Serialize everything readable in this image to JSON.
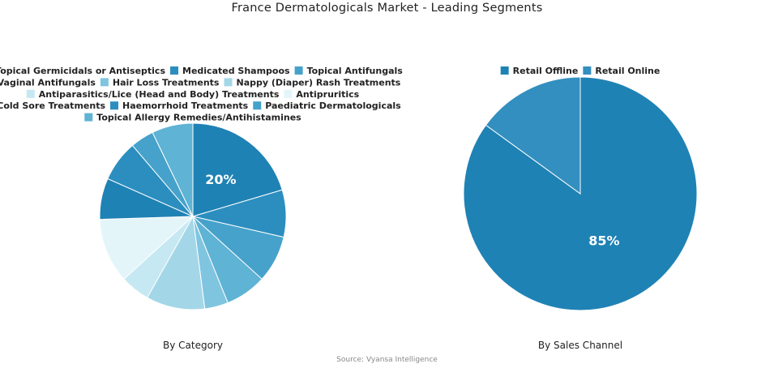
{
  "title": "France Dermatologicals Market - Leading Segments",
  "source": "Source: Vyansa Intelligence",
  "chart_data": [
    {
      "type": "pie",
      "title": "By Category",
      "legend_position": "top",
      "slices": [
        {
          "label": "Topical Germicidals or Antiseptics",
          "value": 20,
          "color": "#1f82b4",
          "data_label": "20%"
        },
        {
          "label": "Medicated Shampoos",
          "value": 8,
          "color": "#2b8ebf",
          "data_label": ""
        },
        {
          "label": "Topical Antifungals",
          "value": 8,
          "color": "#46a2cb",
          "data_label": ""
        },
        {
          "label": "Vaginal Antifungals",
          "value": 7,
          "color": "#5fb3d4",
          "data_label": ""
        },
        {
          "label": "Hair Loss Treatments",
          "value": 4,
          "color": "#80c5df",
          "data_label": ""
        },
        {
          "label": "Nappy (Diaper) Rash Treatments",
          "value": 10,
          "color": "#a3d7e8",
          "data_label": ""
        },
        {
          "label": "Antiparasitics/Lice (Head and Body) Treatments",
          "value": 5,
          "color": "#c6e8f2",
          "data_label": ""
        },
        {
          "label": "Antipruritics",
          "value": 11,
          "color": "#e4f5fa",
          "data_label": ""
        },
        {
          "label": "Cold Sore Treatments",
          "value": 7,
          "color": "#1f82b4",
          "data_label": ""
        },
        {
          "label": "Haemorrhoid Treatments",
          "value": 7,
          "color": "#2b8ebf",
          "data_label": ""
        },
        {
          "label": "Paediatric Dermatologicals",
          "value": 4,
          "color": "#46a2cb",
          "data_label": ""
        },
        {
          "label": "Topical Allergy Remedies/Antihistamines",
          "value": 7,
          "color": "#5fb3d4",
          "data_label": ""
        }
      ]
    },
    {
      "type": "pie",
      "title": "By Sales Channel",
      "legend_position": "top",
      "slices": [
        {
          "label": "Retail Offline",
          "value": 85,
          "color": "#1f82b4",
          "data_label": "85%"
        },
        {
          "label": "Retail Online",
          "value": 15,
          "color": "#338fbf",
          "data_label": ""
        }
      ]
    }
  ]
}
